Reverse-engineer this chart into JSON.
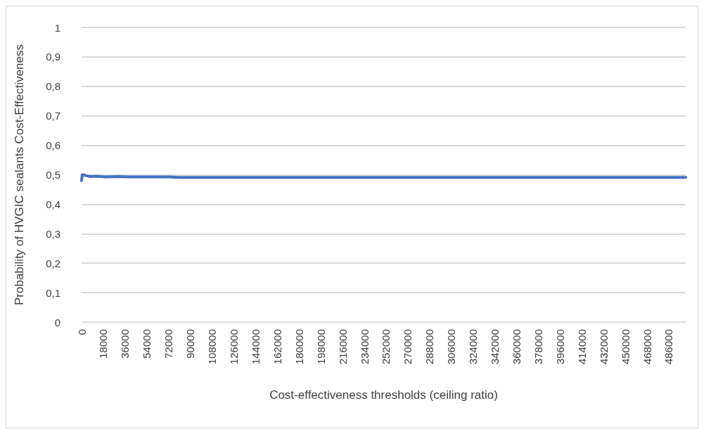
{
  "chart_data": {
    "type": "line",
    "xlabel": "Cost-effectiveness thresholds (ceiling ratio)",
    "ylabel": "Probability of HVGIC sealants Cost-Effectiveness",
    "series": [
      {
        "color": "#4472c4",
        "x": [
          0,
          500,
          1500,
          3000,
          5000,
          8000,
          12000,
          20000,
          30000,
          40000,
          55000,
          72000,
          80000,
          150000,
          300000,
          500000
        ],
        "values": [
          0.48,
          0.5,
          0.5,
          0.498,
          0.496,
          0.494,
          0.495,
          0.493,
          0.494,
          0.493,
          0.493,
          0.493,
          0.491,
          0.491,
          0.491,
          0.491
        ]
      }
    ],
    "xlim": [
      0,
      500000
    ],
    "xticks": [
      0,
      18000,
      36000,
      54000,
      72000,
      90000,
      108000,
      126000,
      144000,
      162000,
      180000,
      198000,
      216000,
      234000,
      252000,
      270000,
      288000,
      306000,
      324000,
      342000,
      360000,
      378000,
      396000,
      414000,
      432000,
      450000,
      468000,
      486000
    ],
    "ylim": [
      0,
      1
    ],
    "yticks": [
      {
        "value": 0,
        "label": "0"
      },
      {
        "value": 0.1,
        "label": "0,1"
      },
      {
        "value": 0.2,
        "label": "0,2"
      },
      {
        "value": 0.3,
        "label": "0,3"
      },
      {
        "value": 0.4,
        "label": "0,4"
      },
      {
        "value": 0.5,
        "label": "0,5"
      },
      {
        "value": 0.6,
        "label": "0,6"
      },
      {
        "value": 0.7,
        "label": "0,7"
      },
      {
        "value": 0.8,
        "label": "0,8"
      },
      {
        "value": 0.9,
        "label": "0,9"
      },
      {
        "value": 1,
        "label": "1"
      }
    ],
    "grid": "y",
    "marker": "none",
    "line_style": "solid"
  }
}
